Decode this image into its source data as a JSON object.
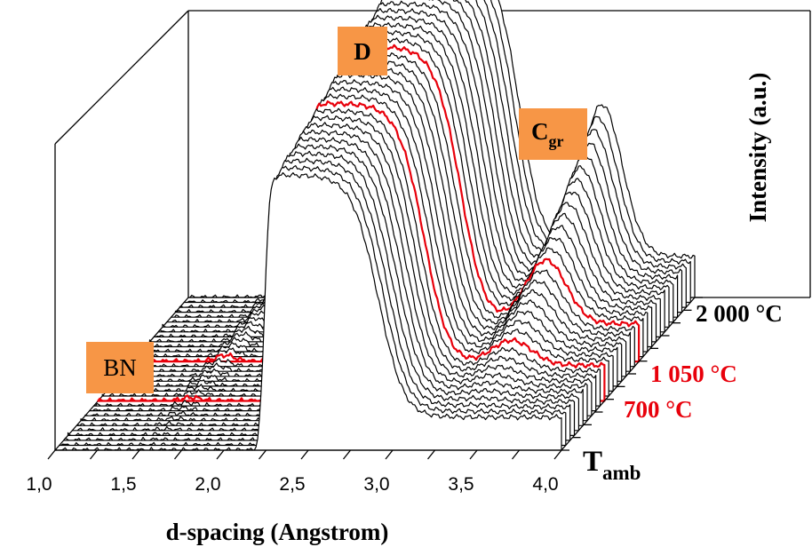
{
  "chart_data": {
    "type": "line",
    "subtype": "3d-waterfall",
    "xlabel": "d-spacing (Angstrom)",
    "zlabel": "Intensity (a.u.)",
    "x_ticks": [
      "1,0",
      "1,5",
      "2,0",
      "2,5",
      "3,0",
      "3,5",
      "4,0"
    ],
    "xlim": [
      1.0,
      4.0
    ],
    "depth_labels": [
      {
        "text": "T",
        "sub": "amb",
        "color": "#000000"
      },
      {
        "text": "700 °C",
        "color": "#e8000b"
      },
      {
        "text": "1 050 °C",
        "color": "#e8000b"
      },
      {
        "text": "2 000 °C",
        "color": "#000000"
      }
    ],
    "peak_labels": [
      {
        "text": "D",
        "sub": ""
      },
      {
        "text": "C",
        "sub": "gr"
      },
      {
        "text": "BN",
        "sub": ""
      }
    ],
    "label_fill": "#f79646",
    "series_color": "#000000",
    "highlight_color": "#e8000b",
    "series_count": 32,
    "highlight_series": [
      10,
      18
    ],
    "peaks": [
      {
        "name": "D",
        "center": 2.35,
        "amplitude_first": 1.0,
        "amplitude_last": 1.25
      },
      {
        "name": "C_gr",
        "center": 3.45,
        "amplitude_first": 0.0,
        "amplitude_last": 0.55
      },
      {
        "name": "BN",
        "center": 1.55,
        "amplitude_first": 0.0,
        "amplitude_last": 0.04
      }
    ]
  }
}
